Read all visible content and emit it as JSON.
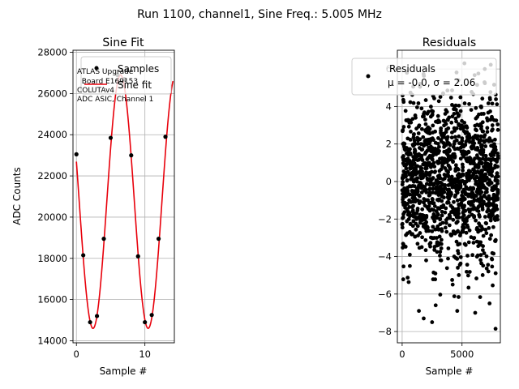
{
  "suptitle": "Run 1100, channel1, Sine Freq.: 5.005 MHz",
  "chart_data": [
    {
      "type": "scatter",
      "title": "Sine Fit",
      "xlabel": "Sample #",
      "ylabel": "ADC Counts",
      "xlim": [
        -0.5,
        14.3
      ],
      "ylim": [
        13900,
        28100
      ],
      "xticks": [
        0,
        10
      ],
      "yticks": [
        14000,
        16000,
        18000,
        20000,
        22000,
        24000,
        26000,
        28000
      ],
      "grid": true,
      "legend_placement": "upper-right",
      "annotation": [
        "ATLAS Upgrade",
        "  Board E169153",
        "COLUTAv4",
        "ADC ASIC, Channel 1"
      ],
      "series": [
        {
          "name": "Samples",
          "kind": "points",
          "color": "#000000",
          "x": [
            0,
            1,
            2,
            3,
            4,
            5,
            6,
            7,
            8,
            9,
            10,
            11,
            12,
            13
          ],
          "y": [
            23050,
            18150,
            14900,
            15200,
            18950,
            23850,
            26900,
            26700,
            23000,
            18100,
            14900,
            15250,
            18950,
            23900
          ]
        },
        {
          "name": "Sine fit",
          "kind": "line",
          "color": "#e8000b",
          "function": "sine",
          "amplitude": 6150,
          "offset": 20750,
          "period": 8.05,
          "phase_peak_x": 6.45,
          "x_range": [
            0,
            14.1
          ]
        }
      ]
    },
    {
      "type": "scatter",
      "title": "Residuals",
      "xlabel": "Sample #",
      "ylabel": "",
      "xlim": [
        -400,
        8200
      ],
      "ylim": [
        -8.6,
        7.0
      ],
      "xticks": [
        0,
        5000
      ],
      "yticks": [
        -8,
        -6,
        -4,
        -2,
        0,
        2,
        4,
        6
      ],
      "grid": true,
      "legend_placement": "upper-right",
      "n_points": 8000,
      "color": "#000000",
      "series": [
        {
          "name": "Residuals",
          "kind": "points",
          "stats_label": "μ = -0.0, σ = 2.06",
          "x_range": [
            0,
            8000
          ],
          "mean": 0.0,
          "sigma": 2.06,
          "outliers": [
            [
              1400,
              -6.9
            ],
            [
              1800,
              -7.3
            ],
            [
              2500,
              -7.5
            ],
            [
              2800,
              -6.6
            ],
            [
              4600,
              -6.9
            ],
            [
              6100,
              -7.0
            ],
            [
              7300,
              -6.5
            ],
            [
              7800,
              -7.85
            ],
            [
              400,
              5.8
            ],
            [
              5200,
              6.3
            ],
            [
              6900,
              6.0
            ],
            [
              4700,
              5.4
            ]
          ]
        }
      ]
    }
  ]
}
